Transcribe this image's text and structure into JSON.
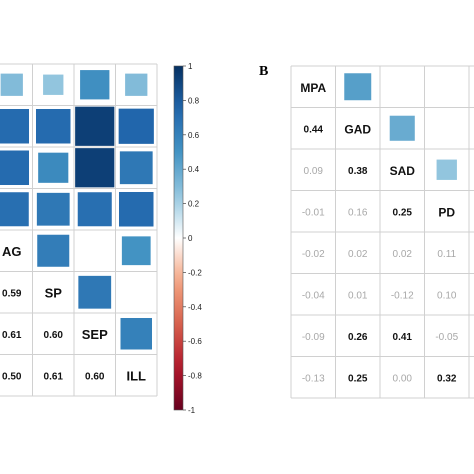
{
  "chart_data": [
    {
      "type": "heatmap",
      "panel": "",
      "variables": [
        "",
        "AG",
        "SP",
        "SEP",
        "ILL"
      ],
      "upper_values": [
        [
          null,
          null,
          null,
          0.52,
          0.3
        ],
        [
          null,
          null,
          0.72,
          0.93,
          0.75
        ],
        [
          null,
          null,
          null,
          0.72,
          0.65
        ],
        [
          null,
          null,
          null,
          null,
          0.7
        ]
      ],
      "cells": [
        {
          "row": 0,
          "col": 0,
          "v": 0.3
        },
        {
          "row": 0,
          "col": 1,
          "v": 0.25
        },
        {
          "row": 1,
          "col": 0,
          "v": 0.72
        },
        {
          "row": 1,
          "col": 1,
          "v": 0.72
        },
        {
          "row": 2,
          "col": 0,
          "v": 0.72
        },
        {
          "row": 2,
          "col": 1,
          "v": 0.55
        },
        {
          "row": 2,
          "col": 2,
          "v": 0.93
        },
        {
          "row": 2,
          "col": 3,
          "v": 0.65
        },
        {
          "row": 3,
          "col": 0,
          "v": 0.7
        },
        {
          "row": 3,
          "col": 1,
          "v": 0.65
        },
        {
          "row": 3,
          "col": 2,
          "v": 0.7
        },
        {
          "row": 3,
          "col": 3,
          "v": 0.72
        },
        {
          "row": 4,
          "col": 1,
          "v": 0.62
        },
        {
          "row": 4,
          "col": 3,
          "v": 0.5
        },
        {
          "row": 5,
          "col": 2,
          "v": 0.65
        },
        {
          "row": 6,
          "col": 3,
          "v": 0.6
        },
        {
          "row": 1,
          "col": 2,
          "v": 0.93
        },
        {
          "row": 1,
          "col": 3,
          "v": 0.75
        },
        {
          "row": 0,
          "col": 2,
          "v": 0.52
        },
        {
          "row": 0,
          "col": 3,
          "v": 0.3
        }
      ],
      "lower_text": [
        {
          "row": 5,
          "col": 0,
          "text": "0.59"
        },
        {
          "row": 6,
          "col": 0,
          "text": "0.61"
        },
        {
          "row": 6,
          "col": 1,
          "text": "0.60"
        },
        {
          "row": 7,
          "col": 0,
          "text": "0.50"
        },
        {
          "row": 7,
          "col": 1,
          "text": "0.61"
        },
        {
          "row": 7,
          "col": 2,
          "text": "0.60"
        }
      ],
      "diag_labels": [
        {
          "row": 4,
          "col": 0,
          "text": "AG"
        },
        {
          "row": 5,
          "col": 1,
          "text": "SP"
        },
        {
          "row": 6,
          "col": 2,
          "text": "SEP"
        },
        {
          "row": 7,
          "col": 3,
          "text": "ILL"
        }
      ]
    },
    {
      "type": "heatmap",
      "panel": "B",
      "variables": [
        "MPA",
        "GAD",
        "SAD",
        "PD",
        "",
        "",
        ""
      ],
      "upper_cells": [
        {
          "row": 0,
          "col": 1,
          "v": 0.44
        },
        {
          "row": 1,
          "col": 2,
          "v": 0.38
        },
        {
          "row": 2,
          "col": 3,
          "v": 0.25
        }
      ],
      "lower": [
        {
          "row": 1,
          "col": 0,
          "text": "0.44",
          "sig": true
        },
        {
          "row": 2,
          "col": 0,
          "text": "0.09",
          "sig": false
        },
        {
          "row": 2,
          "col": 1,
          "text": "0.38",
          "sig": true
        },
        {
          "row": 3,
          "col": 0,
          "text": "-0.01",
          "sig": false
        },
        {
          "row": 3,
          "col": 1,
          "text": "0.16",
          "sig": false
        },
        {
          "row": 3,
          "col": 2,
          "text": "0.25",
          "sig": true
        },
        {
          "row": 4,
          "col": 0,
          "text": "-0.02",
          "sig": false
        },
        {
          "row": 4,
          "col": 1,
          "text": "0.02",
          "sig": false
        },
        {
          "row": 4,
          "col": 2,
          "text": "0.02",
          "sig": false
        },
        {
          "row": 4,
          "col": 3,
          "text": "0.11",
          "sig": false
        },
        {
          "row": 5,
          "col": 0,
          "text": "-0.04",
          "sig": false
        },
        {
          "row": 5,
          "col": 1,
          "text": "0.01",
          "sig": false
        },
        {
          "row": 5,
          "col": 2,
          "text": "-0.12",
          "sig": false
        },
        {
          "row": 5,
          "col": 3,
          "text": "0.10",
          "sig": false
        },
        {
          "row": 6,
          "col": 0,
          "text": "-0.09",
          "sig": false
        },
        {
          "row": 6,
          "col": 1,
          "text": "0.26",
          "sig": true
        },
        {
          "row": 6,
          "col": 2,
          "text": "0.41",
          "sig": true
        },
        {
          "row": 6,
          "col": 3,
          "text": "-0.05",
          "sig": false
        },
        {
          "row": 7,
          "col": 0,
          "text": "-0.13",
          "sig": false
        },
        {
          "row": 7,
          "col": 1,
          "text": "0.25",
          "sig": true
        },
        {
          "row": 7,
          "col": 2,
          "text": "0.00",
          "sig": false
        },
        {
          "row": 7,
          "col": 3,
          "text": "0.32",
          "sig": true
        }
      ],
      "diag_labels": [
        {
          "row": 0,
          "col": 0,
          "text": "MPA"
        },
        {
          "row": 1,
          "col": 1,
          "text": "GAD"
        },
        {
          "row": 2,
          "col": 2,
          "text": "SAD"
        },
        {
          "row": 3,
          "col": 3,
          "text": "PD"
        }
      ]
    }
  ],
  "colorbar": {
    "ticks": [
      "1",
      "0.8",
      "0.6",
      "0.4",
      "0.2",
      "0",
      "-0.2",
      "-0.4",
      "-0.6",
      "-0.8",
      "-1"
    ],
    "range": [
      -1,
      1
    ],
    "color_high": "#053061",
    "color_mid": "#ffffff",
    "color_low": "#67001f"
  },
  "colors": {
    "grid": "#d0d0d0",
    "sig_text": "#111111",
    "nonsig_text": "#a8a8a8"
  }
}
